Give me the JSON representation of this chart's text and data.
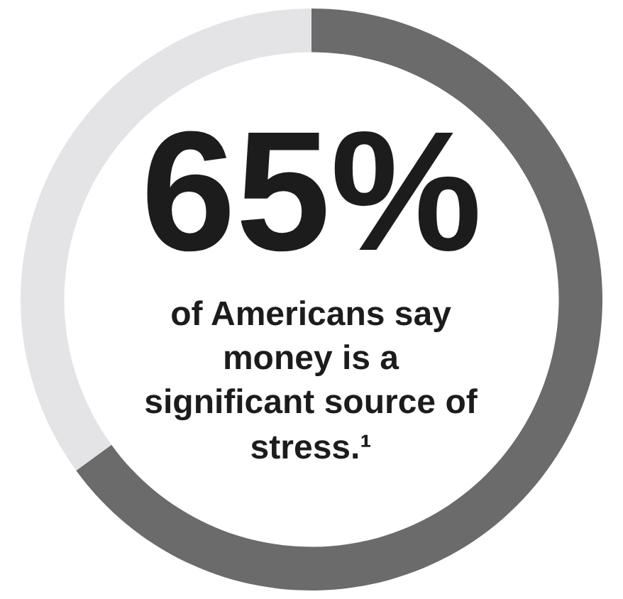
{
  "chart_data": {
    "type": "donut",
    "categories": [
      null,
      null
    ],
    "values": [
      65,
      35
    ],
    "colors": [
      "#6b6b6b",
      "#e4e4e6"
    ],
    "value_labels": [
      "65%",
      null
    ],
    "legend": false,
    "annotations": [
      "of Americans say money is a significant source of stress.¹"
    ]
  }
}
